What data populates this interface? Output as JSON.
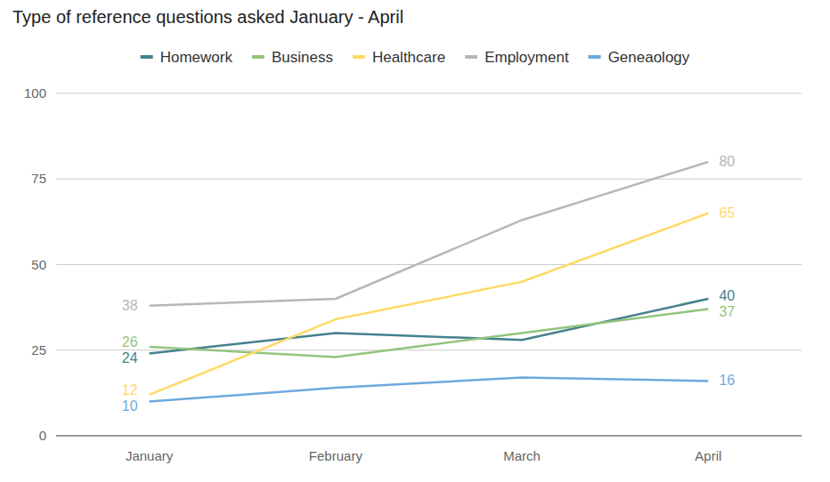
{
  "chart_data": {
    "type": "line",
    "title": "Type of reference questions asked January - April",
    "categories": [
      "January",
      "February",
      "March",
      "April"
    ],
    "series": [
      {
        "name": "Homework",
        "color": "#45818e",
        "values": [
          24,
          30,
          28,
          40
        ]
      },
      {
        "name": "Business",
        "color": "#93c47d",
        "values": [
          26,
          23,
          30,
          37
        ]
      },
      {
        "name": "Healthcare",
        "color": "#ffd966",
        "values": [
          12,
          34,
          45,
          65
        ]
      },
      {
        "name": "Employment",
        "color": "#b7b7b7",
        "values": [
          38,
          40,
          63,
          80
        ]
      },
      {
        "name": "Geneaology",
        "color": "#6fa8dc",
        "values": [
          10,
          14,
          17,
          16
        ]
      }
    ],
    "ylim": [
      0,
      100
    ],
    "yticks": [
      0,
      25,
      50,
      75,
      100
    ],
    "grid": true,
    "legend": "top",
    "data_labels": true
  }
}
